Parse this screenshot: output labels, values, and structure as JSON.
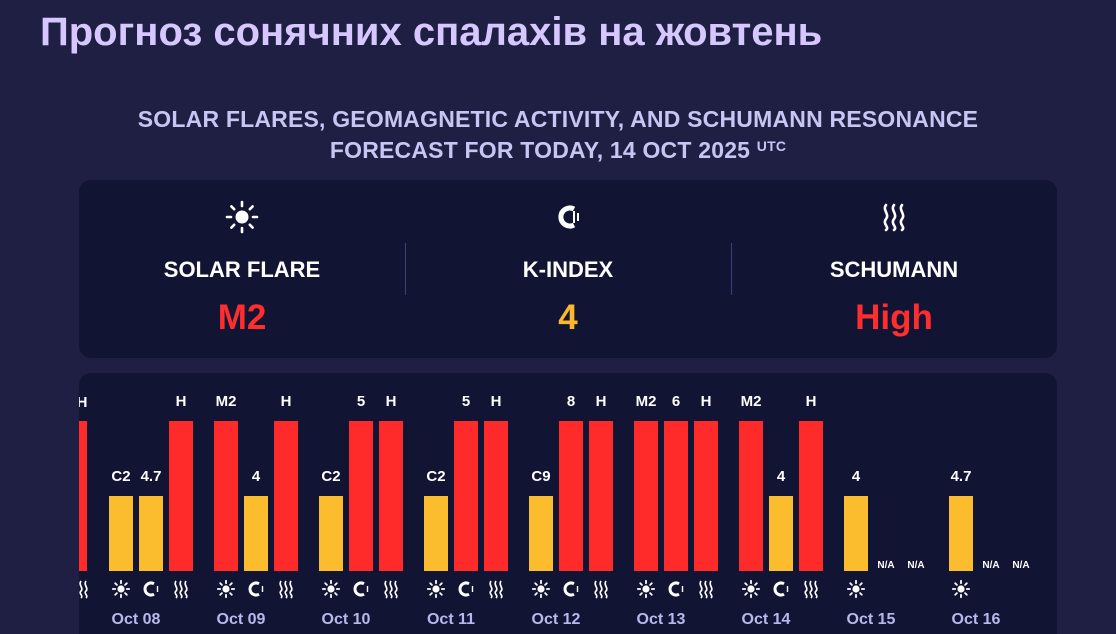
{
  "header": {
    "title": "Прогноз сонячних спалахів на жовтень",
    "subtitle_line1": "SOLAR FLARES, GEOMAGNETIC ACTIVITY, AND SCHUMANN RESONANCE",
    "subtitle_line2": "FORECAST FOR TODAY, 14 OCT 2025",
    "subtitle_sup": "UTC"
  },
  "summary": {
    "solar_flare": {
      "label": "SOLAR FLARE",
      "value": "M2",
      "icon": "sun-icon",
      "color": "#ff2d2d"
    },
    "k_index": {
      "label": "K-INDEX",
      "value": "4",
      "icon": "magnet-icon",
      "color": "#fbb82a"
    },
    "schumann": {
      "label": "SCHUMANN",
      "value": "High",
      "icon": "waves-icon",
      "color": "#ff2d2d"
    }
  },
  "colors": {
    "high": "#ff2a2a",
    "moderate": "#fbbd2e",
    "background": "#1f1f43",
    "panel": "#121433",
    "day_label": "#b9b8ec"
  },
  "chart_data": {
    "type": "bar",
    "series": [
      {
        "name": "SOLAR FLARE",
        "icon": "sun-icon"
      },
      {
        "name": "K-INDEX",
        "icon": "magnet-icon"
      },
      {
        "name": "SCHUMANN",
        "icon": "waves-icon"
      }
    ],
    "partial_previous_day": {
      "value_label": "H",
      "level": 3,
      "color": "#ff2a2a"
    },
    "days": [
      {
        "label": "Oct 08",
        "bars": [
          {
            "value": "C2",
            "level": 1,
            "color": "#fbbd2e"
          },
          {
            "value": "4.7",
            "level": 1,
            "color": "#fbbd2e"
          },
          {
            "value": "H",
            "level": 3,
            "color": "#ff2a2a"
          }
        ]
      },
      {
        "label": "Oct 09",
        "bars": [
          {
            "value": "M2",
            "level": 3,
            "color": "#ff2a2a"
          },
          {
            "value": "4",
            "level": 1,
            "color": "#fbbd2e"
          },
          {
            "value": "H",
            "level": 3,
            "color": "#ff2a2a"
          }
        ]
      },
      {
        "label": "Oct 10",
        "bars": [
          {
            "value": "C2",
            "level": 1,
            "color": "#fbbd2e"
          },
          {
            "value": "5",
            "level": 3,
            "color": "#ff2a2a"
          },
          {
            "value": "H",
            "level": 3,
            "color": "#ff2a2a"
          }
        ]
      },
      {
        "label": "Oct 11",
        "bars": [
          {
            "value": "C2",
            "level": 1,
            "color": "#fbbd2e"
          },
          {
            "value": "5",
            "level": 3,
            "color": "#ff2a2a"
          },
          {
            "value": "H",
            "level": 3,
            "color": "#ff2a2a"
          }
        ]
      },
      {
        "label": "Oct 12",
        "bars": [
          {
            "value": "C9",
            "level": 1,
            "color": "#fbbd2e"
          },
          {
            "value": "8",
            "level": 3,
            "color": "#ff2a2a"
          },
          {
            "value": "H",
            "level": 3,
            "color": "#ff2a2a"
          }
        ]
      },
      {
        "label": "Oct 13",
        "bars": [
          {
            "value": "M2",
            "level": 3,
            "color": "#ff2a2a"
          },
          {
            "value": "6",
            "level": 3,
            "color": "#ff2a2a"
          },
          {
            "value": "H",
            "level": 3,
            "color": "#ff2a2a"
          }
        ]
      },
      {
        "label": "Oct 14",
        "bars": [
          {
            "value": "M2",
            "level": 3,
            "color": "#ff2a2a"
          },
          {
            "value": "4",
            "level": 1,
            "color": "#fbbd2e"
          },
          {
            "value": "H",
            "level": 3,
            "color": "#ff2a2a"
          }
        ]
      },
      {
        "label": "Oct 15",
        "bars": [
          {
            "value": "4",
            "level": 1,
            "color": "#fbbd2e"
          },
          {
            "value": "N/A",
            "level": 0,
            "color": null
          },
          {
            "value": "N/A",
            "level": 0,
            "color": null
          }
        ]
      },
      {
        "label": "Oct 16",
        "bars": [
          {
            "value": "4.7",
            "level": 1,
            "color": "#fbbd2e"
          },
          {
            "value": "N/A",
            "level": 0,
            "color": null
          },
          {
            "value": "N/A",
            "level": 0,
            "color": null
          }
        ]
      }
    ]
  }
}
